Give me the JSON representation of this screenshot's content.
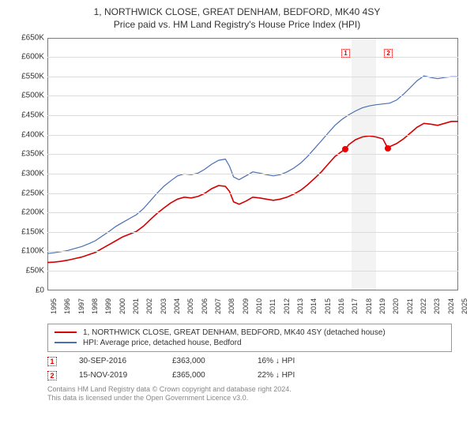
{
  "title_line1": "1, NORTHWICK CLOSE, GREAT DENHAM, BEDFORD, MK40 4SY",
  "title_line2": "Price paid vs. HM Land Registry's House Price Index (HPI)",
  "chart": {
    "type": "line",
    "background_color": "#ffffff",
    "grid_color": "#dcdcdc",
    "border_color": "#7a7a7a",
    "ylim": [
      0,
      650000
    ],
    "ytick_step": 50000,
    "ytick_labels": [
      "£0",
      "£50K",
      "£100K",
      "£150K",
      "£200K",
      "£250K",
      "£300K",
      "£350K",
      "£400K",
      "£450K",
      "£500K",
      "£550K",
      "£600K",
      "£650K"
    ],
    "x_start_year": 1995,
    "x_end_year": 2025,
    "xtick_labels": [
      "1995",
      "1996",
      "1997",
      "1998",
      "1999",
      "2000",
      "2001",
      "2002",
      "2003",
      "2004",
      "2005",
      "2006",
      "2007",
      "2008",
      "2009",
      "2010",
      "2011",
      "2012",
      "2013",
      "2014",
      "2015",
      "2016",
      "2017",
      "2018",
      "2019",
      "2020",
      "2021",
      "2022",
      "2023",
      "2024",
      "2025"
    ],
    "series": [
      {
        "name": "property",
        "label": "1, NORTHWICK CLOSE, GREAT DENHAM, BEDFORD, MK40 4SY (detached house)",
        "color": "#d40000",
        "line_width": 1.6,
        "data": [
          [
            1995,
            72000
          ],
          [
            1995.5,
            73000
          ],
          [
            1996,
            75000
          ],
          [
            1996.5,
            78000
          ],
          [
            1997,
            82000
          ],
          [
            1997.5,
            86000
          ],
          [
            1998,
            92000
          ],
          [
            1998.5,
            98000
          ],
          [
            1999,
            108000
          ],
          [
            1999.5,
            118000
          ],
          [
            2000,
            128000
          ],
          [
            2000.5,
            138000
          ],
          [
            2001,
            145000
          ],
          [
            2001.5,
            152000
          ],
          [
            2002,
            165000
          ],
          [
            2002.5,
            182000
          ],
          [
            2003,
            198000
          ],
          [
            2003.5,
            212000
          ],
          [
            2004,
            225000
          ],
          [
            2004.5,
            235000
          ],
          [
            2005,
            240000
          ],
          [
            2005.5,
            238000
          ],
          [
            2006,
            242000
          ],
          [
            2006.5,
            250000
          ],
          [
            2007,
            262000
          ],
          [
            2007.5,
            270000
          ],
          [
            2008,
            268000
          ],
          [
            2008.3,
            255000
          ],
          [
            2008.6,
            228000
          ],
          [
            2009,
            222000
          ],
          [
            2009.5,
            230000
          ],
          [
            2010,
            240000
          ],
          [
            2010.5,
            238000
          ],
          [
            2011,
            235000
          ],
          [
            2011.5,
            232000
          ],
          [
            2012,
            235000
          ],
          [
            2012.5,
            240000
          ],
          [
            2013,
            248000
          ],
          [
            2013.5,
            258000
          ],
          [
            2014,
            272000
          ],
          [
            2014.5,
            288000
          ],
          [
            2015,
            305000
          ],
          [
            2015.5,
            325000
          ],
          [
            2016,
            345000
          ],
          [
            2016.5,
            358000
          ],
          [
            2016.75,
            363000
          ],
          [
            2017,
            375000
          ],
          [
            2017.5,
            388000
          ],
          [
            2018,
            395000
          ],
          [
            2018.5,
            398000
          ],
          [
            2019,
            395000
          ],
          [
            2019.5,
            390000
          ],
          [
            2019.87,
            365000
          ],
          [
            2020,
            370000
          ],
          [
            2020.5,
            378000
          ],
          [
            2021,
            390000
          ],
          [
            2021.5,
            405000
          ],
          [
            2022,
            420000
          ],
          [
            2022.5,
            430000
          ],
          [
            2023,
            428000
          ],
          [
            2023.5,
            425000
          ],
          [
            2024,
            430000
          ],
          [
            2024.5,
            435000
          ],
          [
            2025,
            435000
          ]
        ]
      },
      {
        "name": "hpi",
        "label": "HPI: Average price, detached house, Bedford",
        "color": "#4a6fb3",
        "line_width": 1.2,
        "data": [
          [
            1995,
            95000
          ],
          [
            1995.5,
            97000
          ],
          [
            1996,
            100000
          ],
          [
            1996.5,
            103000
          ],
          [
            1997,
            108000
          ],
          [
            1997.5,
            113000
          ],
          [
            1998,
            120000
          ],
          [
            1998.5,
            128000
          ],
          [
            1999,
            140000
          ],
          [
            1999.5,
            152000
          ],
          [
            2000,
            165000
          ],
          [
            2000.5,
            175000
          ],
          [
            2001,
            185000
          ],
          [
            2001.5,
            195000
          ],
          [
            2002,
            210000
          ],
          [
            2002.5,
            230000
          ],
          [
            2003,
            250000
          ],
          [
            2003.5,
            268000
          ],
          [
            2004,
            282000
          ],
          [
            2004.5,
            295000
          ],
          [
            2005,
            300000
          ],
          [
            2005.5,
            298000
          ],
          [
            2006,
            302000
          ],
          [
            2006.5,
            312000
          ],
          [
            2007,
            325000
          ],
          [
            2007.5,
            335000
          ],
          [
            2008,
            338000
          ],
          [
            2008.3,
            320000
          ],
          [
            2008.6,
            292000
          ],
          [
            2009,
            285000
          ],
          [
            2009.5,
            295000
          ],
          [
            2010,
            305000
          ],
          [
            2010.5,
            302000
          ],
          [
            2011,
            298000
          ],
          [
            2011.5,
            295000
          ],
          [
            2012,
            298000
          ],
          [
            2012.5,
            305000
          ],
          [
            2013,
            315000
          ],
          [
            2013.5,
            328000
          ],
          [
            2014,
            345000
          ],
          [
            2014.5,
            365000
          ],
          [
            2015,
            385000
          ],
          [
            2015.5,
            405000
          ],
          [
            2016,
            425000
          ],
          [
            2016.5,
            440000
          ],
          [
            2017,
            452000
          ],
          [
            2017.5,
            462000
          ],
          [
            2018,
            470000
          ],
          [
            2018.5,
            475000
          ],
          [
            2019,
            478000
          ],
          [
            2019.5,
            480000
          ],
          [
            2020,
            482000
          ],
          [
            2020.5,
            490000
          ],
          [
            2021,
            505000
          ],
          [
            2021.5,
            522000
          ],
          [
            2022,
            540000
          ],
          [
            2022.5,
            552000
          ],
          [
            2023,
            548000
          ],
          [
            2023.5,
            545000
          ],
          [
            2024,
            548000
          ],
          [
            2024.5,
            550000
          ],
          [
            2025,
            550000
          ]
        ]
      }
    ],
    "shaded_band": {
      "x_from": 2017.2,
      "x_to": 2019.0,
      "color": "#eaeaea"
    },
    "markers": [
      {
        "n": "1",
        "x_year": 2016.75,
        "top_y": 14,
        "point_value": 363000
      },
      {
        "n": "2",
        "x_year": 2019.87,
        "top_y": 14,
        "point_value": 365000
      }
    ]
  },
  "legend_label_1": "1, NORTHWICK CLOSE, GREAT DENHAM, BEDFORD, MK40 4SY (detached house)",
  "legend_label_2": "HPI: Average price, detached house, Bedford",
  "sales": [
    {
      "n": "1",
      "date": "30-SEP-2016",
      "price": "£363,000",
      "diff": "16% ↓ HPI"
    },
    {
      "n": "2",
      "date": "15-NOV-2019",
      "price": "£365,000",
      "diff": "22% ↓ HPI"
    }
  ],
  "attribution_line1": "Contains HM Land Registry data © Crown copyright and database right 2024.",
  "attribution_line2": "This data is licensed under the Open Government Licence v3.0."
}
